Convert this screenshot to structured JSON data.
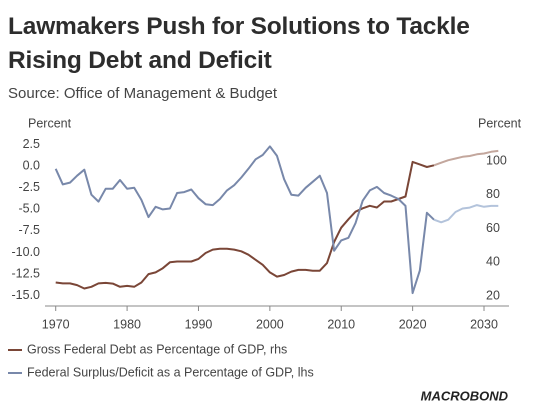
{
  "chart_data": {
    "type": "line",
    "title": "Lawmakers Push for Solutions to Tackle Rising Debt and Deficit",
    "subtitle": "Source: Office of Management & Budget",
    "y_label": "Percent",
    "y2_label": "Percent",
    "branding": "MACROBOND",
    "projection_from": 2023,
    "x": [
      1970,
      1971,
      1972,
      1973,
      1974,
      1975,
      1976,
      1977,
      1978,
      1979,
      1980,
      1981,
      1982,
      1983,
      1984,
      1985,
      1986,
      1987,
      1988,
      1989,
      1990,
      1991,
      1992,
      1993,
      1994,
      1995,
      1996,
      1997,
      1998,
      1999,
      2000,
      2001,
      2002,
      2003,
      2004,
      2005,
      2006,
      2007,
      2008,
      2009,
      2010,
      2011,
      2012,
      2013,
      2014,
      2015,
      2016,
      2017,
      2018,
      2019,
      2020,
      2021,
      2022,
      2023,
      2024,
      2025,
      2026,
      2027,
      2028,
      2029,
      2030,
      2031,
      2032
    ],
    "series": [
      {
        "name": "Gross Federal Debt as Percentage of GDP, rhs",
        "color": "#7a4637",
        "projection_color": "#c3a79d",
        "axis": "y2",
        "values": [
          28,
          27.5,
          27.5,
          26.5,
          24.5,
          25.5,
          27.5,
          27.8,
          27.4,
          25.5,
          26,
          25.5,
          28,
          33,
          34,
          36.5,
          40,
          40.5,
          40.5,
          40.5,
          42,
          45.5,
          47.5,
          48,
          48,
          47.5,
          46.5,
          44.5,
          41.5,
          38.5,
          34,
          31.5,
          32.5,
          34.5,
          35.5,
          35.5,
          35,
          35,
          39.5,
          52,
          60.5,
          65.5,
          70,
          72,
          73.5,
          72.5,
          76,
          76,
          77.5,
          79,
          99.5,
          98,
          96.5,
          97.5,
          99,
          100.5,
          101.5,
          102.5,
          103,
          104,
          104.5,
          105.5,
          106
        ]
      },
      {
        "name": "Federal Surplus/Deficit as a Percentage of GDP, lhs",
        "color": "#7888aa",
        "projection_color": "#b3c3db",
        "values": [
          -0.3,
          -2.1,
          -1.9,
          -1.1,
          -0.4,
          -3.3,
          -4.1,
          -2.6,
          -2.6,
          -1.6,
          -2.6,
          -2.5,
          -3.9,
          -5.9,
          -4.7,
          -5.0,
          -4.9,
          -3.1,
          -3.0,
          -2.7,
          -3.7,
          -4.4,
          -4.5,
          -3.8,
          -2.8,
          -2.2,
          -1.3,
          -0.3,
          0.8,
          1.3,
          2.3,
          1.2,
          -1.5,
          -3.3,
          -3.4,
          -2.5,
          -1.8,
          -1.1,
          -3.1,
          -9.8,
          -8.6,
          -8.3,
          -6.6,
          -4.0,
          -2.8,
          -2.4,
          -3.1,
          -3.4,
          -3.8,
          -4.6,
          -14.7,
          -12.1,
          -5.4,
          -6.2,
          -6.5,
          -6.2,
          -5.3,
          -4.9,
          -4.8,
          -4.5,
          -4.7,
          -4.6,
          -4.6
        ]
      }
    ],
    "xlim": [
      1968.5,
      2033.5
    ],
    "xticks": [
      1970,
      1980,
      1990,
      2000,
      2010,
      2020,
      2030
    ],
    "ylim": [
      -16.2,
      4.2
    ],
    "yticks": [
      2.5,
      {
        "value": 0,
        "label": "0.0"
      },
      -2.5,
      {
        "value": -5,
        "label": "-5.0"
      },
      -7.5,
      {
        "value": -10,
        "label": "-10.0"
      },
      -12.5,
      {
        "value": -15,
        "label": "-15.0"
      }
    ],
    "y2lim": [
      14.1,
      118.4
    ],
    "y2ticks": [
      20,
      40,
      60,
      80,
      100
    ],
    "grid": false
  }
}
